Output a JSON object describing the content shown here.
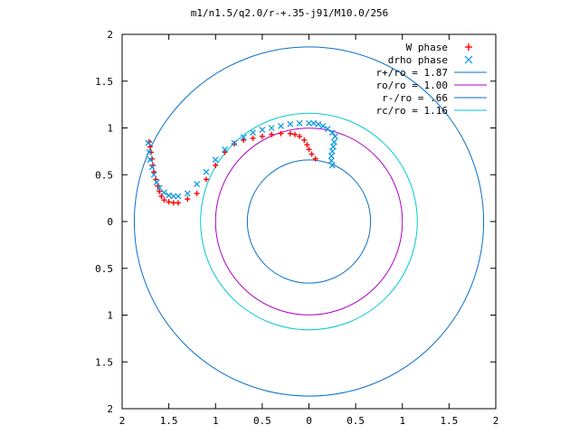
{
  "chart_data": {
    "type": "scatter",
    "title": "m1/n1.5/q2.0/r-+.35-j91/M10.0/256",
    "xlim": [
      2,
      -2
    ],
    "ylim": [
      -2,
      2
    ],
    "x_ticks": [
      2,
      1.5,
      1,
      0.5,
      0,
      0.5,
      1,
      1.5,
      2
    ],
    "y_ticks": [
      2,
      1.5,
      1,
      0.5,
      0,
      0.5,
      1,
      1.5,
      2
    ],
    "grid": false,
    "legend_position": "top-right",
    "colors": {
      "w_phase": "#ff0000",
      "drho_phase": "#0096e6",
      "r_plus": "#0a70c8",
      "ro": "#b000c8",
      "r_minus": "#0a70c8",
      "rc": "#00c8d2",
      "axes": "#000000"
    },
    "legend": [
      {
        "label": "W phase",
        "marker": "+",
        "color": "#ff0000"
      },
      {
        "label": "drho phase",
        "marker": "x",
        "color": "#0096e6"
      },
      {
        "label": "r+/ro = 1.87",
        "marker": "line",
        "color": "#0a70c8"
      },
      {
        "label": "ro/ro = 1.00",
        "marker": "line",
        "color": "#b000c8"
      },
      {
        "label": "r-/ro = .66",
        "marker": "line",
        "color": "#0a70c8"
      },
      {
        "label": "rc/ro = 1.16",
        "marker": "line",
        "color": "#00c8d2"
      }
    ],
    "circles": [
      {
        "name": "r+/ro = 1.87",
        "r": 1.87
      },
      {
        "name": "ro/ro = 1.00",
        "r": 1.0
      },
      {
        "name": "r-/ro = .66",
        "r": 0.66
      },
      {
        "name": "rc/ro = 1.16",
        "r": 1.16
      }
    ],
    "series": [
      {
        "name": "W phase",
        "x": [
          -0.07,
          -0.03,
          0.0,
          0.02,
          0.05,
          0.1,
          0.15,
          0.2,
          0.3,
          0.4,
          0.5,
          0.6,
          0.7,
          0.8,
          0.9,
          1.0,
          1.1,
          1.2,
          1.3,
          1.4,
          1.45,
          1.5,
          1.55,
          1.58,
          1.6,
          1.62,
          1.64,
          1.66,
          1.67,
          1.68,
          1.69,
          1.7,
          1.71
        ],
        "y": [
          0.67,
          0.72,
          0.77,
          0.82,
          0.87,
          0.91,
          0.93,
          0.94,
          0.94,
          0.93,
          0.91,
          0.89,
          0.87,
          0.83,
          0.74,
          0.6,
          0.45,
          0.3,
          0.24,
          0.2,
          0.2,
          0.21,
          0.23,
          0.27,
          0.32,
          0.38,
          0.45,
          0.53,
          0.6,
          0.67,
          0.74,
          0.8,
          0.85
        ]
      },
      {
        "name": "drho phase",
        "x": [
          -0.25,
          -0.24,
          -0.24,
          -0.25,
          -0.26,
          -0.27,
          -0.28,
          -0.25,
          -0.2,
          -0.15,
          -0.1,
          -0.05,
          0.0,
          0.1,
          0.2,
          0.3,
          0.4,
          0.5,
          0.6,
          0.7,
          0.8,
          0.9,
          1.0,
          1.1,
          1.2,
          1.3,
          1.4,
          1.45,
          1.5,
          1.55,
          1.6,
          1.63,
          1.66,
          1.68,
          1.7,
          1.71,
          1.72
        ],
        "y": [
          0.6,
          0.65,
          0.7,
          0.75,
          0.8,
          0.85,
          0.91,
          0.95,
          0.99,
          1.02,
          1.04,
          1.05,
          1.05,
          1.05,
          1.04,
          1.02,
          1.0,
          0.98,
          0.95,
          0.9,
          0.84,
          0.77,
          0.66,
          0.53,
          0.4,
          0.3,
          0.27,
          0.27,
          0.28,
          0.31,
          0.36,
          0.42,
          0.5,
          0.58,
          0.66,
          0.74,
          0.84
        ]
      }
    ]
  }
}
